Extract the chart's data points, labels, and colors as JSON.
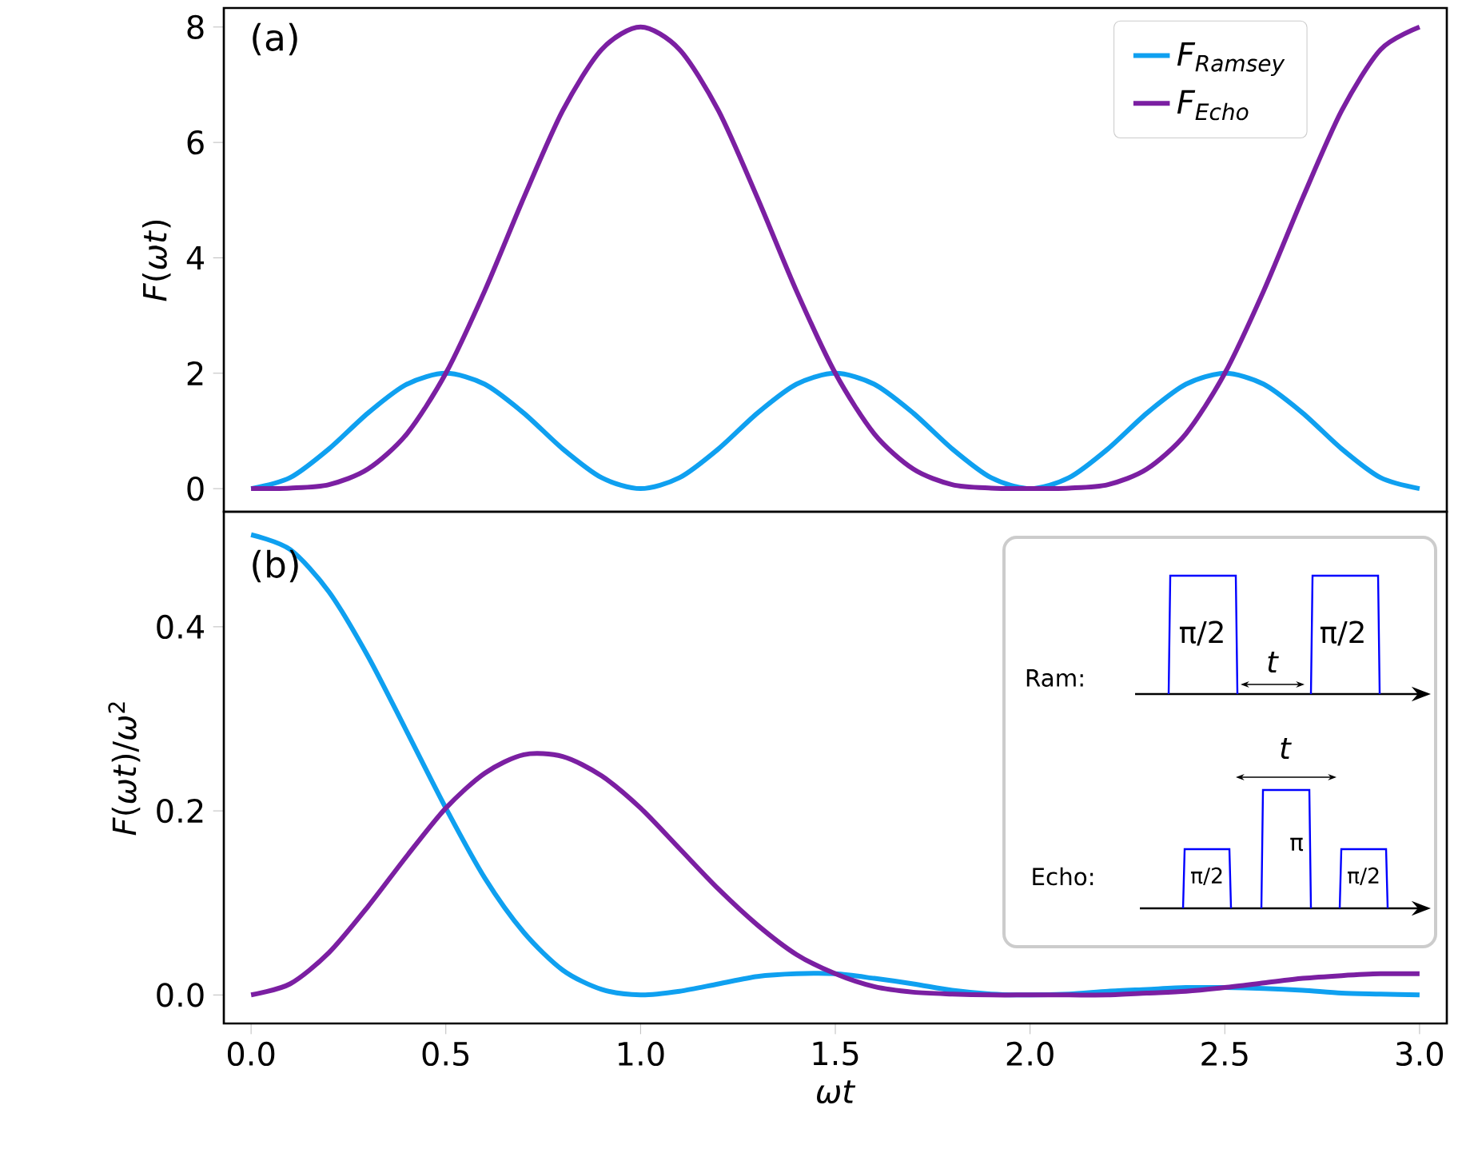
{
  "chart_data": [
    {
      "type": "line",
      "ylabel": "*F*(*ωt*)",
      "annotations": [
        "(a)"
      ],
      "legend": "top right",
      "tick_labels": "y",
      "xlim": [
        -0.07,
        3.07
      ],
      "ylim": [
        -0.4,
        8.33
      ],
      "yticks": [
        0,
        2,
        4,
        6,
        8
      ],
      "x": [
        0,
        0.1,
        0.2,
        0.3,
        0.4,
        0.5,
        0.6,
        0.7,
        0.8,
        0.9,
        1.0,
        1.1,
        1.2,
        1.3,
        1.4,
        1.5,
        1.6,
        1.7,
        1.8,
        1.9,
        2.0,
        2.1,
        2.2,
        2.3,
        2.4,
        2.5,
        2.6,
        2.7,
        2.8,
        2.9,
        3.0
      ],
      "series": [
        {
          "name": "F$_{Ramsey}$",
          "color": "#0fa0f0",
          "values": [
            0,
            0.19,
            0.69,
            1.31,
            1.81,
            2,
            1.81,
            1.31,
            0.69,
            0.19,
            0,
            0.19,
            0.69,
            1.31,
            1.81,
            2,
            1.81,
            1.31,
            0.69,
            0.19,
            0,
            0.19,
            0.69,
            1.31,
            1.81,
            2,
            1.81,
            1.31,
            0.69,
            0.19,
            0
          ]
        },
        {
          "name": "F$_{Echo}$",
          "color": "#7b1fa2",
          "values": [
            0,
            0.01,
            0.07,
            0.34,
            0.95,
            2,
            3.43,
            5.04,
            6.55,
            7.61,
            8,
            7.61,
            6.55,
            5.04,
            3.43,
            2,
            0.95,
            0.34,
            0.07,
            0.01,
            0,
            0.01,
            0.07,
            0.34,
            0.95,
            2,
            3.43,
            5.04,
            6.55,
            7.61,
            8
          ]
        }
      ]
    },
    {
      "type": "line",
      "xlabel": "*ωt*",
      "ylabel": "*F*(*ωt*)/*ω*$^{2}$",
      "annotations": [
        "(b)",
        "Ram:",
        "π/2",
        "*t*",
        "π/2",
        "Echo:",
        "*t*",
        "π/2",
        "π",
        "π/2"
      ],
      "xlim": [
        -0.07,
        3.07
      ],
      "ylim": [
        -0.031,
        0.525
      ],
      "xticks": [
        {
          "value": 0,
          "label": "0.0"
        },
        {
          "value": 0.5,
          "label": "0.5"
        },
        {
          "value": 1,
          "label": "1.0"
        },
        {
          "value": 1.5,
          "label": "1.5"
        },
        {
          "value": 2,
          "label": "2.0"
        },
        {
          "value": 2.5,
          "label": "2.5"
        },
        {
          "value": 3,
          "label": "3.0"
        }
      ],
      "yticks": [
        {
          "value": 0,
          "label": "0.0"
        },
        {
          "value": 0.2,
          "label": "0.2"
        },
        {
          "value": 0.4,
          "label": "0.4"
        }
      ],
      "x": [
        0,
        0.1,
        0.2,
        0.3,
        0.4,
        0.5,
        0.6,
        0.7,
        0.8,
        0.9,
        1.0,
        1.1,
        1.2,
        1.3,
        1.4,
        1.5,
        1.6,
        1.7,
        1.8,
        1.9,
        2.0,
        2.1,
        2.2,
        2.3,
        2.4,
        2.5,
        2.6,
        2.7,
        2.8,
        2.9,
        3.0
      ],
      "series": [
        {
          "color": "#0fa0f0",
          "values": [
            0.5,
            0.484,
            0.438,
            0.368,
            0.286,
            0.203,
            0.127,
            0.068,
            0.027,
            0.006,
            0,
            0.004,
            0.012,
            0.02,
            0.023,
            0.023,
            0.018,
            0.012,
            0.005,
            0.001,
            0,
            0.001,
            0.004,
            0.006,
            0.008,
            0.008,
            0.007,
            0.005,
            0.002,
            0.001,
            0
          ]
        },
        {
          "color": "#7b1fa2",
          "values": [
            0,
            0.012,
            0.046,
            0.096,
            0.151,
            0.203,
            0.241,
            0.261,
            0.259,
            0.238,
            0.203,
            0.159,
            0.115,
            0.076,
            0.044,
            0.023,
            0.009,
            0.003,
            0.001,
            0,
            0,
            0,
            0,
            0.002,
            0.004,
            0.008,
            0.013,
            0.018,
            0.021,
            0.023,
            0.023
          ]
        }
      ]
    }
  ]
}
